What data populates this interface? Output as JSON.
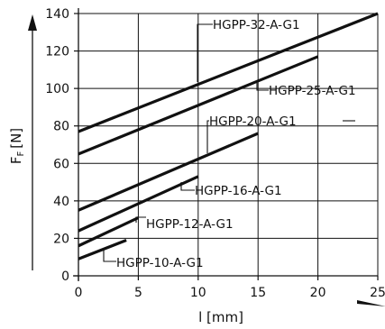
{
  "chart_data": {
    "type": "line",
    "xlabel": "l [mm]",
    "ylabel": "F",
    "ylabel_sub": "F",
    "ylabel_unit": "[N]",
    "xlim": [
      0,
      25
    ],
    "ylim": [
      0,
      140
    ],
    "x_ticks": [
      0,
      5,
      10,
      15,
      20,
      25
    ],
    "y_ticks": [
      0,
      20,
      40,
      60,
      80,
      100,
      120,
      140
    ],
    "grid": true,
    "series": [
      {
        "name": "HGPP-32-A-G1",
        "x": [
          0,
          25
        ],
        "y": [
          77,
          140
        ]
      },
      {
        "name": "HGPP-25-A-G1",
        "x": [
          0,
          20
        ],
        "y": [
          65,
          117
        ]
      },
      {
        "name": "HGPP-20-A-G1",
        "x": [
          0,
          15
        ],
        "y": [
          35,
          76
        ]
      },
      {
        "name": "HGPP-16-A-G1",
        "x": [
          0,
          10
        ],
        "y": [
          24,
          53
        ]
      },
      {
        "name": "HGPP-12-A-G1",
        "x": [
          0,
          5
        ],
        "y": [
          16,
          31
        ]
      },
      {
        "name": "HGPP-10-A-G1",
        "x": [
          0,
          4
        ],
        "y": [
          9,
          19
        ]
      }
    ],
    "annotations": [
      {
        "text": "HGPP-32-A-G1",
        "series": 0,
        "at": [
          10.5,
          102
        ]
      },
      {
        "text": "HGPP-25-A-G1",
        "series": 1,
        "at": [
          15.5,
          93
        ]
      },
      {
        "text": "HGPP-20-A-G1",
        "series": 2,
        "at": [
          11,
          62
        ]
      },
      {
        "text": "HGPP-16-A-G1",
        "series": 3,
        "at": [
          8.5,
          49
        ]
      },
      {
        "text": "HGPP-12-A-G1",
        "series": 4,
        "at": [
          4.5,
          28
        ]
      },
      {
        "text": "HGPP-10-A-G1",
        "series": 5,
        "at": [
          2.5,
          15
        ]
      }
    ]
  }
}
